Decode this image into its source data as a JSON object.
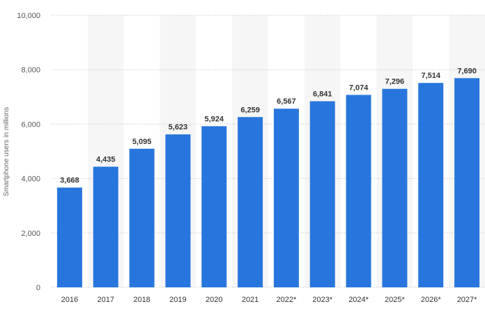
{
  "chart_data": {
    "type": "bar",
    "title": "",
    "xlabel": "",
    "ylabel": "Smartphone users in millions",
    "categories": [
      "2016",
      "2017",
      "2018",
      "2019",
      "2020",
      "2021",
      "2022*",
      "2023*",
      "2024*",
      "2025*",
      "2026*",
      "2027*"
    ],
    "values": [
      3668,
      4435,
      5095,
      5623,
      5924,
      6259,
      6567,
      6841,
      7074,
      7296,
      7514,
      7690
    ],
    "value_labels": [
      "3,668",
      "4,435",
      "5,095",
      "5,623",
      "5,924",
      "6,259",
      "6,567",
      "6,841",
      "7,074",
      "7,296",
      "7,514",
      "7,690"
    ],
    "ylim": [
      0,
      10000
    ],
    "y_ticks": [
      0,
      2000,
      4000,
      6000,
      8000,
      10000
    ],
    "y_tick_labels": [
      "0",
      "2,000",
      "4,000",
      "6,000",
      "8,000",
      "10,000"
    ],
    "grid": true,
    "legend": "none",
    "colors": {
      "bar": "#2876dd",
      "band": "#f6f6f6",
      "gridline": "#c8c8c8"
    }
  }
}
